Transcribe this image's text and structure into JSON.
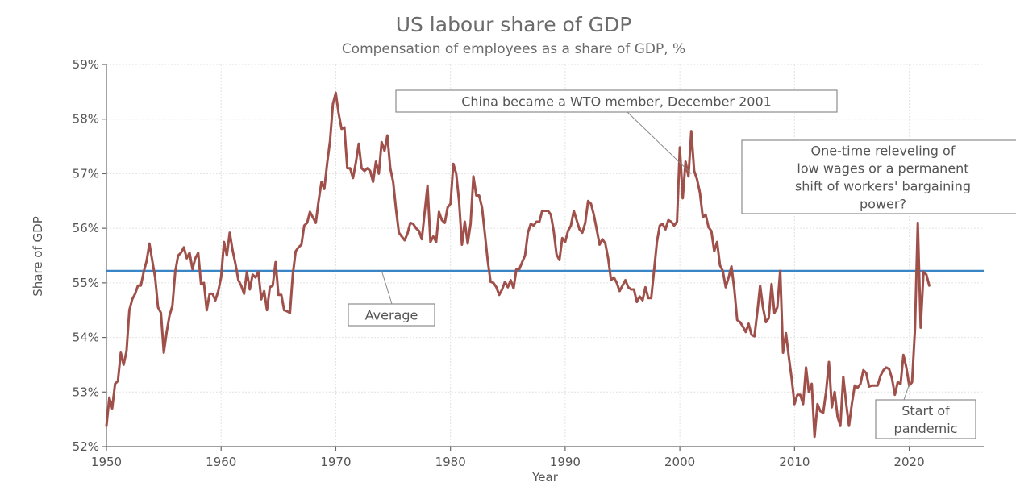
{
  "chart_data": {
    "type": "line",
    "title": "US labour share of GDP",
    "subtitle": "Compensation of employees as a share of GDP, %",
    "xlabel": "Year",
    "ylabel": "Share of GDP",
    "xlim": [
      1950,
      2026.5
    ],
    "ylim": [
      52,
      59
    ],
    "x_ticks": [
      1950,
      1960,
      1970,
      1980,
      1990,
      2000,
      2010,
      2020
    ],
    "y_ticks": [
      52,
      53,
      54,
      55,
      56,
      57,
      58,
      59
    ],
    "y_tick_labels": [
      "52%",
      "53%",
      "54%",
      "55%",
      "56%",
      "57%",
      "58%",
      "59%"
    ],
    "grid": true,
    "series": [
      {
        "color": "#a0504a",
        "points": [
          [
            1950.0,
            52.38
          ],
          [
            1950.25,
            52.9
          ],
          [
            1950.5,
            52.7
          ],
          [
            1950.75,
            53.15
          ],
          [
            1951.0,
            53.2
          ],
          [
            1951.25,
            53.72
          ],
          [
            1951.5,
            53.5
          ],
          [
            1951.75,
            53.75
          ],
          [
            1952.0,
            54.5
          ],
          [
            1952.25,
            54.7
          ],
          [
            1952.5,
            54.8
          ],
          [
            1952.75,
            54.95
          ],
          [
            1953.0,
            54.95
          ],
          [
            1953.25,
            55.2
          ],
          [
            1953.5,
            55.4
          ],
          [
            1953.75,
            55.72
          ],
          [
            1954.0,
            55.4
          ],
          [
            1954.25,
            55.1
          ],
          [
            1954.5,
            54.55
          ],
          [
            1954.75,
            54.45
          ],
          [
            1955.0,
            53.72
          ],
          [
            1955.25,
            54.1
          ],
          [
            1955.5,
            54.4
          ],
          [
            1955.75,
            54.58
          ],
          [
            1956.0,
            55.2
          ],
          [
            1956.25,
            55.5
          ],
          [
            1956.5,
            55.55
          ],
          [
            1956.75,
            55.65
          ],
          [
            1957.0,
            55.45
          ],
          [
            1957.25,
            55.55
          ],
          [
            1957.5,
            55.25
          ],
          [
            1957.75,
            55.45
          ],
          [
            1958.0,
            55.55
          ],
          [
            1958.25,
            54.98
          ],
          [
            1958.5,
            55.0
          ],
          [
            1958.75,
            54.5
          ],
          [
            1959.0,
            54.8
          ],
          [
            1959.25,
            54.8
          ],
          [
            1959.5,
            54.68
          ],
          [
            1959.75,
            54.85
          ],
          [
            1960.0,
            55.1
          ],
          [
            1960.25,
            55.75
          ],
          [
            1960.5,
            55.5
          ],
          [
            1960.75,
            55.92
          ],
          [
            1961.0,
            55.6
          ],
          [
            1961.25,
            55.35
          ],
          [
            1961.5,
            55.05
          ],
          [
            1961.75,
            54.95
          ],
          [
            1962.0,
            54.8
          ],
          [
            1962.25,
            55.2
          ],
          [
            1962.5,
            54.88
          ],
          [
            1962.75,
            55.15
          ],
          [
            1963.0,
            55.1
          ],
          [
            1963.25,
            55.2
          ],
          [
            1963.5,
            54.7
          ],
          [
            1963.75,
            54.85
          ],
          [
            1964.0,
            54.5
          ],
          [
            1964.25,
            54.92
          ],
          [
            1964.5,
            54.95
          ],
          [
            1964.75,
            55.38
          ],
          [
            1965.0,
            54.78
          ],
          [
            1965.25,
            54.78
          ],
          [
            1965.5,
            54.5
          ],
          [
            1965.75,
            54.48
          ],
          [
            1966.0,
            54.45
          ],
          [
            1966.25,
            55.15
          ],
          [
            1966.5,
            55.58
          ],
          [
            1966.75,
            55.65
          ],
          [
            1967.0,
            55.7
          ],
          [
            1967.25,
            56.05
          ],
          [
            1967.5,
            56.1
          ],
          [
            1967.75,
            56.3
          ],
          [
            1968.0,
            56.2
          ],
          [
            1968.25,
            56.1
          ],
          [
            1968.5,
            56.5
          ],
          [
            1968.75,
            56.85
          ],
          [
            1969.0,
            56.72
          ],
          [
            1969.25,
            57.2
          ],
          [
            1969.5,
            57.6
          ],
          [
            1969.75,
            58.28
          ],
          [
            1970.0,
            58.48
          ],
          [
            1970.25,
            58.1
          ],
          [
            1970.5,
            57.82
          ],
          [
            1970.75,
            57.85
          ],
          [
            1971.0,
            57.1
          ],
          [
            1971.25,
            57.1
          ],
          [
            1971.5,
            56.92
          ],
          [
            1971.75,
            57.2
          ],
          [
            1972.0,
            57.55
          ],
          [
            1972.25,
            57.1
          ],
          [
            1972.5,
            57.05
          ],
          [
            1972.75,
            57.1
          ],
          [
            1973.0,
            57.05
          ],
          [
            1973.25,
            56.85
          ],
          [
            1973.5,
            57.22
          ],
          [
            1973.75,
            57.0
          ],
          [
            1974.0,
            57.58
          ],
          [
            1974.25,
            57.42
          ],
          [
            1974.5,
            57.7
          ],
          [
            1974.75,
            57.1
          ],
          [
            1975.0,
            56.85
          ],
          [
            1975.25,
            56.35
          ],
          [
            1975.5,
            55.92
          ],
          [
            1975.75,
            55.85
          ],
          [
            1976.0,
            55.78
          ],
          [
            1976.25,
            55.9
          ],
          [
            1976.5,
            56.1
          ],
          [
            1976.75,
            56.08
          ],
          [
            1977.0,
            56.0
          ],
          [
            1977.25,
            55.95
          ],
          [
            1977.5,
            55.8
          ],
          [
            1977.75,
            56.3
          ],
          [
            1978.0,
            56.78
          ],
          [
            1978.25,
            55.75
          ],
          [
            1978.5,
            55.85
          ],
          [
            1978.75,
            55.75
          ],
          [
            1979.0,
            56.3
          ],
          [
            1979.25,
            56.15
          ],
          [
            1979.5,
            56.1
          ],
          [
            1979.75,
            56.38
          ],
          [
            1980.0,
            56.45
          ],
          [
            1980.25,
            57.18
          ],
          [
            1980.5,
            57.0
          ],
          [
            1980.75,
            56.5
          ],
          [
            1981.0,
            55.7
          ],
          [
            1981.25,
            56.12
          ],
          [
            1981.5,
            55.72
          ],
          [
            1981.75,
            56.08
          ],
          [
            1982.0,
            56.95
          ],
          [
            1982.25,
            56.6
          ],
          [
            1982.5,
            56.6
          ],
          [
            1982.75,
            56.38
          ],
          [
            1983.0,
            55.9
          ],
          [
            1983.25,
            55.4
          ],
          [
            1983.5,
            55.02
          ],
          [
            1983.75,
            55.0
          ],
          [
            1984.0,
            54.92
          ],
          [
            1984.25,
            54.78
          ],
          [
            1984.5,
            54.88
          ],
          [
            1984.75,
            55.02
          ],
          [
            1985.0,
            54.92
          ],
          [
            1985.25,
            55.05
          ],
          [
            1985.5,
            54.9
          ],
          [
            1985.75,
            55.25
          ],
          [
            1986.0,
            55.25
          ],
          [
            1986.25,
            55.38
          ],
          [
            1986.5,
            55.5
          ],
          [
            1986.75,
            55.92
          ],
          [
            1987.0,
            56.08
          ],
          [
            1987.25,
            56.05
          ],
          [
            1987.5,
            56.12
          ],
          [
            1987.75,
            56.12
          ],
          [
            1988.0,
            56.32
          ],
          [
            1988.25,
            56.32
          ],
          [
            1988.5,
            56.32
          ],
          [
            1988.75,
            56.25
          ],
          [
            1989.0,
            55.95
          ],
          [
            1989.25,
            55.52
          ],
          [
            1989.5,
            55.42
          ],
          [
            1989.75,
            55.82
          ],
          [
            1990.0,
            55.75
          ],
          [
            1990.25,
            55.95
          ],
          [
            1990.5,
            56.05
          ],
          [
            1990.75,
            56.32
          ],
          [
            1991.0,
            56.15
          ],
          [
            1991.25,
            55.98
          ],
          [
            1991.5,
            55.92
          ],
          [
            1991.75,
            56.1
          ],
          [
            1992.0,
            56.5
          ],
          [
            1992.25,
            56.45
          ],
          [
            1992.5,
            56.25
          ],
          [
            1992.75,
            55.98
          ],
          [
            1993.0,
            55.7
          ],
          [
            1993.25,
            55.8
          ],
          [
            1993.5,
            55.72
          ],
          [
            1993.75,
            55.45
          ],
          [
            1994.0,
            55.05
          ],
          [
            1994.25,
            55.1
          ],
          [
            1994.5,
            55.0
          ],
          [
            1994.75,
            54.85
          ],
          [
            1995.0,
            54.95
          ],
          [
            1995.25,
            55.05
          ],
          [
            1995.5,
            54.92
          ],
          [
            1995.75,
            54.88
          ],
          [
            1996.0,
            54.88
          ],
          [
            1996.25,
            54.65
          ],
          [
            1996.5,
            54.75
          ],
          [
            1996.75,
            54.68
          ],
          [
            1997.0,
            54.92
          ],
          [
            1997.25,
            54.72
          ],
          [
            1997.5,
            54.72
          ],
          [
            1997.75,
            55.22
          ],
          [
            1998.0,
            55.75
          ],
          [
            1998.25,
            56.05
          ],
          [
            1998.5,
            56.08
          ],
          [
            1998.75,
            55.98
          ],
          [
            1999.0,
            56.15
          ],
          [
            1999.25,
            56.12
          ],
          [
            1999.5,
            56.05
          ],
          [
            1999.75,
            56.12
          ],
          [
            2000.0,
            57.48
          ],
          [
            2000.25,
            56.55
          ],
          [
            2000.5,
            57.22
          ],
          [
            2000.75,
            56.95
          ],
          [
            2001.0,
            57.78
          ],
          [
            2001.25,
            57.05
          ],
          [
            2001.5,
            56.9
          ],
          [
            2001.75,
            56.65
          ],
          [
            2002.0,
            56.2
          ],
          [
            2002.25,
            56.25
          ],
          [
            2002.5,
            56.02
          ],
          [
            2002.75,
            55.95
          ],
          [
            2003.0,
            55.58
          ],
          [
            2003.25,
            55.75
          ],
          [
            2003.5,
            55.32
          ],
          [
            2003.75,
            55.22
          ],
          [
            2004.0,
            54.92
          ],
          [
            2004.25,
            55.1
          ],
          [
            2004.5,
            55.3
          ],
          [
            2004.75,
            54.88
          ],
          [
            2005.0,
            54.32
          ],
          [
            2005.25,
            54.28
          ],
          [
            2005.5,
            54.2
          ],
          [
            2005.75,
            54.1
          ],
          [
            2006.0,
            54.25
          ],
          [
            2006.25,
            54.05
          ],
          [
            2006.5,
            54.02
          ],
          [
            2006.75,
            54.45
          ],
          [
            2007.0,
            54.95
          ],
          [
            2007.25,
            54.55
          ],
          [
            2007.5,
            54.28
          ],
          [
            2007.75,
            54.35
          ],
          [
            2008.0,
            54.98
          ],
          [
            2008.25,
            54.45
          ],
          [
            2008.5,
            54.55
          ],
          [
            2008.75,
            55.22
          ],
          [
            2009.0,
            53.72
          ],
          [
            2009.25,
            54.08
          ],
          [
            2009.5,
            53.65
          ],
          [
            2009.75,
            53.25
          ],
          [
            2010.0,
            52.78
          ],
          [
            2010.25,
            52.95
          ],
          [
            2010.5,
            52.95
          ],
          [
            2010.75,
            52.78
          ],
          [
            2011.0,
            53.45
          ],
          [
            2011.25,
            53.0
          ],
          [
            2011.5,
            53.15
          ],
          [
            2011.75,
            52.18
          ],
          [
            2012.0,
            52.78
          ],
          [
            2012.25,
            52.65
          ],
          [
            2012.5,
            52.62
          ],
          [
            2012.75,
            53.0
          ],
          [
            2013.0,
            53.55
          ],
          [
            2013.25,
            52.72
          ],
          [
            2013.5,
            53.0
          ],
          [
            2013.75,
            52.55
          ],
          [
            2014.0,
            52.38
          ],
          [
            2014.25,
            53.28
          ],
          [
            2014.5,
            52.8
          ],
          [
            2014.75,
            52.38
          ],
          [
            2015.0,
            52.78
          ],
          [
            2015.25,
            53.12
          ],
          [
            2015.5,
            53.08
          ],
          [
            2015.75,
            53.15
          ],
          [
            2016.0,
            53.4
          ],
          [
            2016.25,
            53.35
          ],
          [
            2016.5,
            53.1
          ],
          [
            2016.75,
            53.12
          ],
          [
            2017.0,
            53.12
          ],
          [
            2017.25,
            53.12
          ],
          [
            2017.5,
            53.3
          ],
          [
            2017.75,
            53.4
          ],
          [
            2018.0,
            53.45
          ],
          [
            2018.25,
            53.42
          ],
          [
            2018.5,
            53.25
          ],
          [
            2018.75,
            52.95
          ],
          [
            2019.0,
            53.18
          ],
          [
            2019.25,
            53.15
          ],
          [
            2019.5,
            53.68
          ],
          [
            2019.75,
            53.45
          ],
          [
            2020.0,
            53.12
          ],
          [
            2020.25,
            53.18
          ],
          [
            2020.5,
            54.15
          ],
          [
            2020.75,
            56.1
          ],
          [
            2021.0,
            54.18
          ],
          [
            2021.25,
            55.2
          ],
          [
            2021.5,
            55.15
          ],
          [
            2021.75,
            54.95
          ]
        ]
      }
    ],
    "reference_line": {
      "name": "Average",
      "value": 55.22,
      "color": "#3a85c6"
    },
    "annotations": [
      {
        "text": [
          "China became a WTO member, December 2001"
        ],
        "target": [
          2001.0,
          57.0
        ]
      },
      {
        "text": [
          "One-time releveling of",
          "low wages or a permanent",
          "shift of workers' bargaining",
          "power?"
        ],
        "target": null
      },
      {
        "text": [
          "Average"
        ],
        "target": [
          1974.0,
          55.22
        ]
      },
      {
        "text": [
          "Start of",
          "pandemic"
        ],
        "target": [
          2020.1,
          53.2
        ]
      }
    ]
  }
}
